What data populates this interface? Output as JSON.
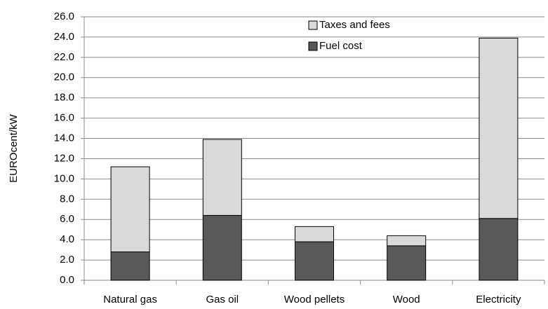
{
  "chart_data": {
    "type": "stacked-bar",
    "ylabel": "EUROcent/kW",
    "categories": [
      "Natural gas",
      "Gas oil",
      "Wood pellets",
      "Wood",
      "Electricity"
    ],
    "series": [
      {
        "name": "Fuel cost",
        "color": "#595959",
        "values": [
          2.8,
          6.4,
          3.8,
          3.4,
          6.1
        ]
      },
      {
        "name": "Taxes and fees",
        "color": "#d9d9d9",
        "values": [
          8.4,
          7.5,
          1.5,
          1.0,
          17.8
        ]
      }
    ],
    "ylim": [
      0,
      26
    ],
    "yticks": [
      {
        "value": 0,
        "label": "0.0"
      },
      {
        "value": 2,
        "label": "2.0"
      },
      {
        "value": 4,
        "label": "4.0"
      },
      {
        "value": 6,
        "label": "6.0"
      },
      {
        "value": 8,
        "label": "8.0"
      },
      {
        "value": 10,
        "label": "10.0"
      },
      {
        "value": 12,
        "label": "12.0"
      },
      {
        "value": 14,
        "label": "14.0"
      },
      {
        "value": 16,
        "label": "16.0"
      },
      {
        "value": 18,
        "label": "18.0"
      },
      {
        "value": 20,
        "label": "20.0"
      },
      {
        "value": 22,
        "label": "22.0"
      },
      {
        "value": 24,
        "label": "24.0"
      },
      {
        "value": 26,
        "label": "26.0"
      }
    ],
    "grid": true,
    "legend": "top"
  }
}
